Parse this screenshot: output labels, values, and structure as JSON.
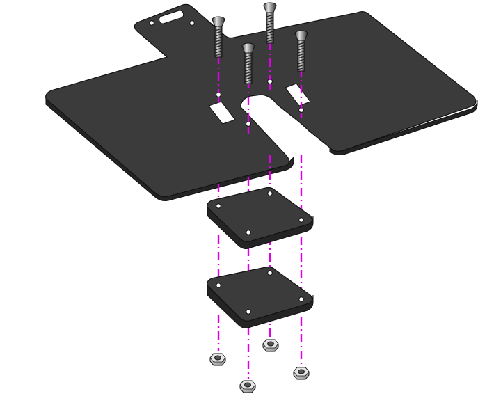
{
  "diagram": {
    "type": "exploded-assembly",
    "parts": [
      "top-plate",
      "spacer-plate",
      "spacer-plate",
      "screw",
      "screw",
      "screw",
      "screw",
      "hex-nut",
      "hex-nut",
      "hex-nut",
      "hex-nut"
    ],
    "colors": {
      "plate_top": "#3b3b3b",
      "plate_edge": "#242424",
      "outline": "#111111",
      "guide_line": "#e000e6",
      "screw_light": "#cfcfcf",
      "screw_dark": "#3a3a3a",
      "nut": "#c9c9c9",
      "background": "#ffffff"
    }
  }
}
